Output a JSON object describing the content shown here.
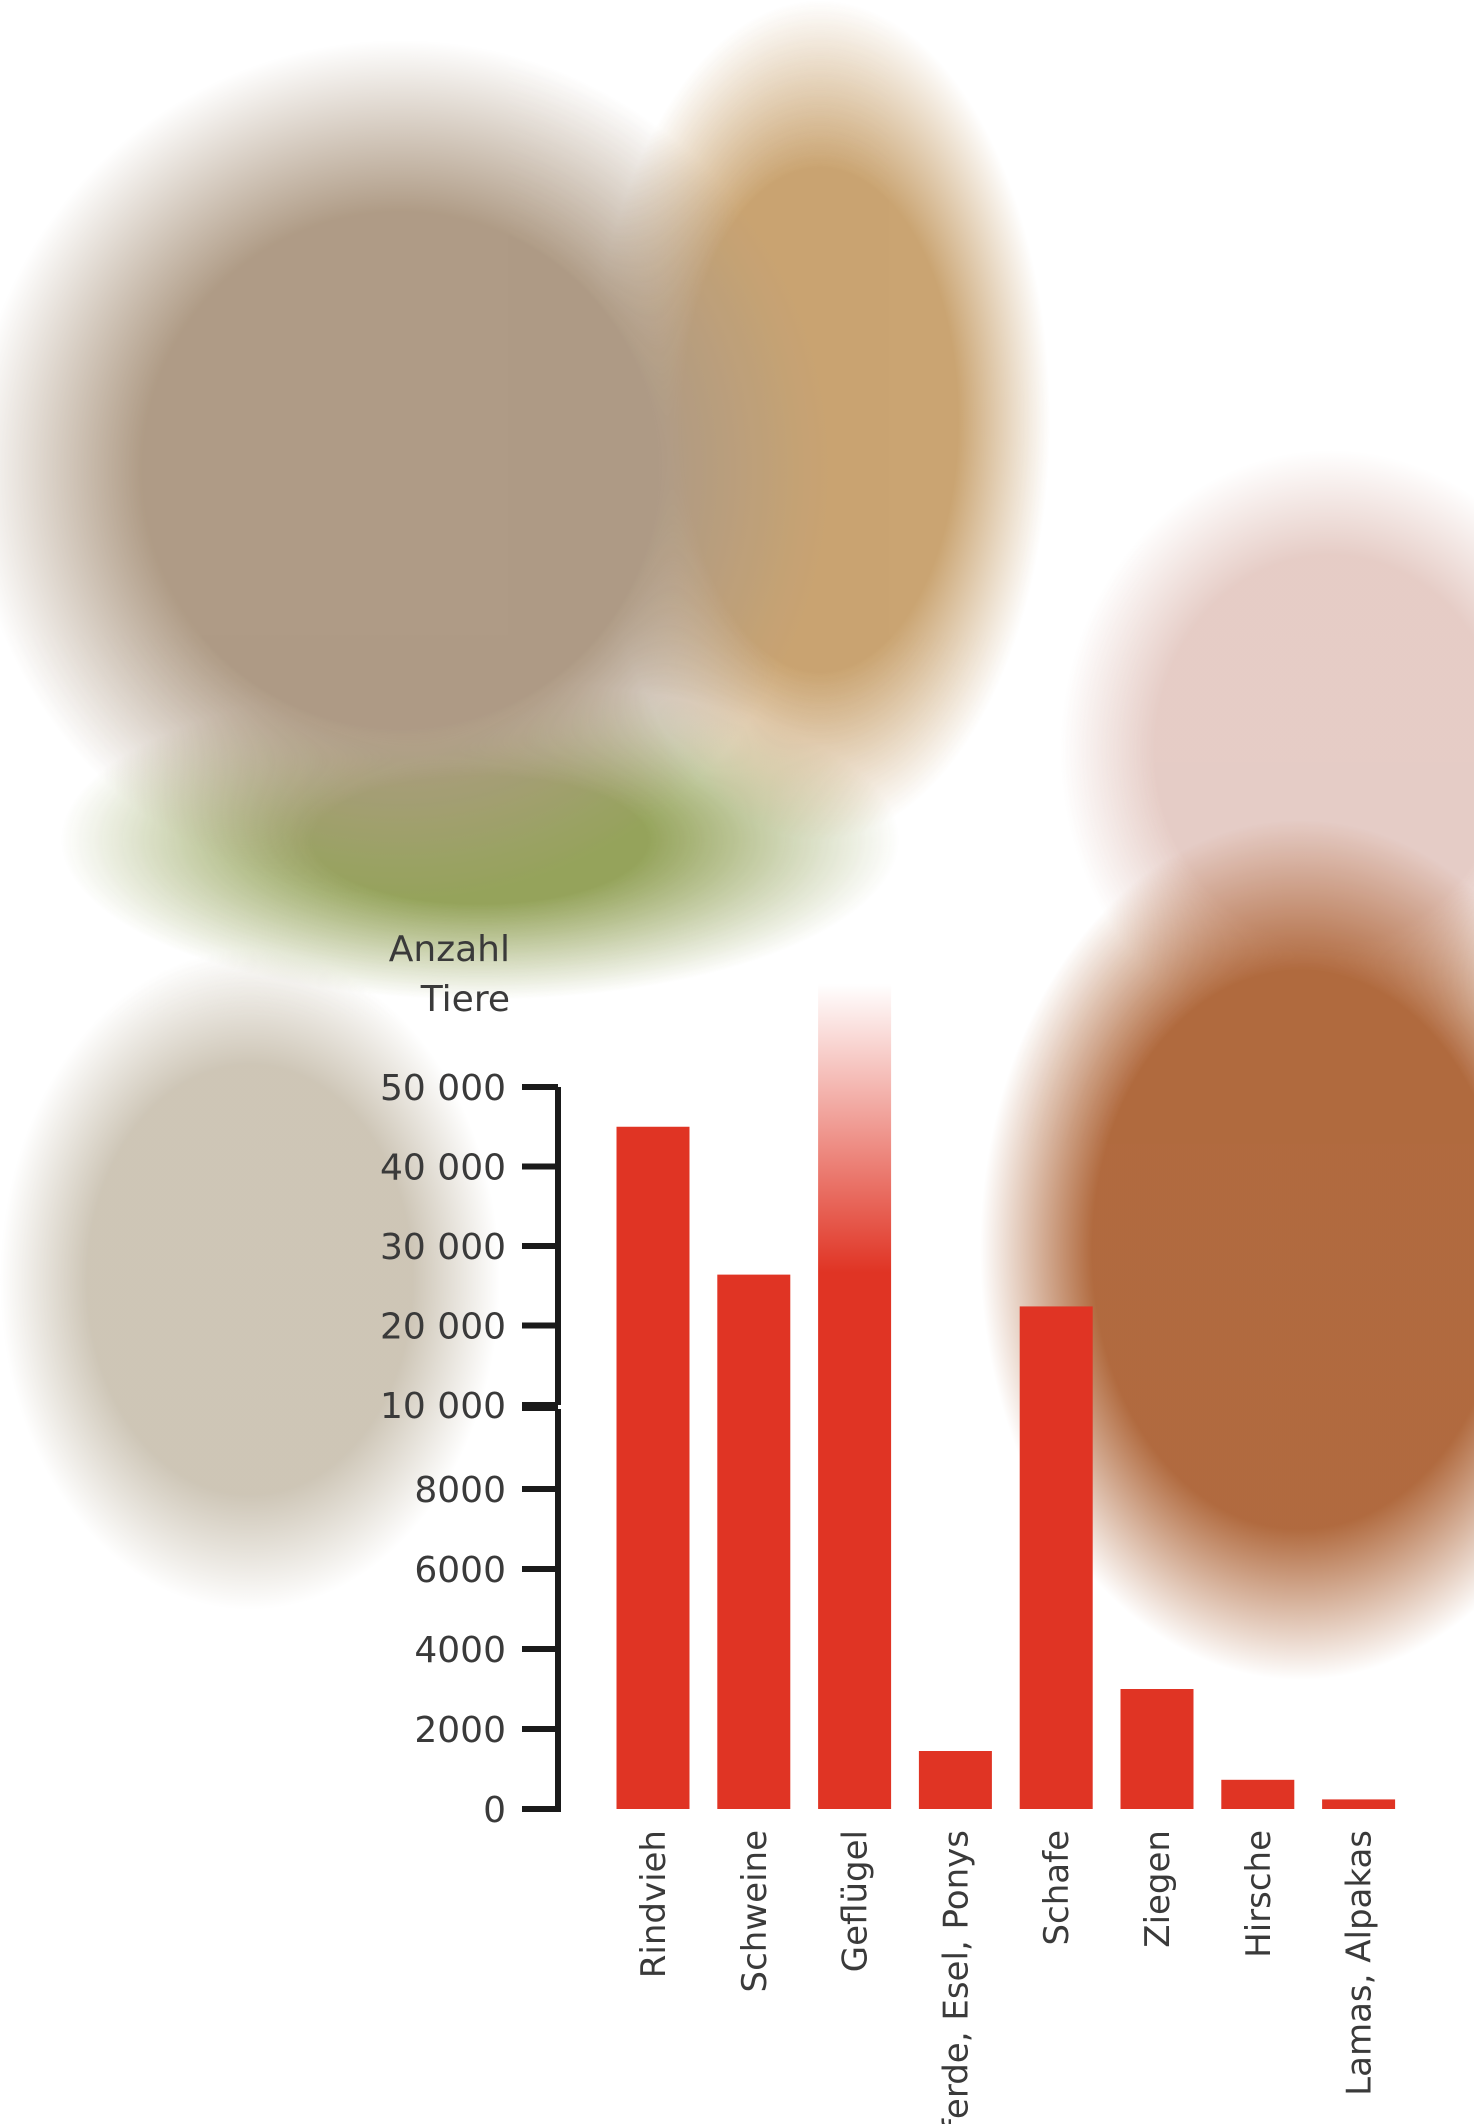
{
  "chart_data": {
    "type": "bar",
    "ylabel": "Anzahl Tiere",
    "categories": [
      "Rindvieh",
      "Schweine",
      "Geflügel",
      "Pferde, Esel, Ponys",
      "Schafe",
      "Ziegen",
      "Hirsche",
      "Lamas, Alpakas"
    ],
    "values": [
      45000,
      26400,
      63000,
      1450,
      22400,
      3000,
      730,
      240
    ],
    "color": "#e03424",
    "y_segments": [
      {
        "ylim": [
          0,
          10000
        ],
        "yticks": [
          0,
          2000,
          4000,
          6000,
          8000
        ]
      },
      {
        "ylim": [
          10000,
          50000
        ],
        "yticks": [
          {
            "value": 10000,
            "label": "10 000"
          },
          {
            "value": 20000,
            "label": "20 000"
          },
          {
            "value": 30000,
            "label": "30 000"
          },
          {
            "value": 40000,
            "label": "40 000"
          },
          {
            "value": 50000,
            "label": "50 000"
          }
        ]
      }
    ]
  }
}
